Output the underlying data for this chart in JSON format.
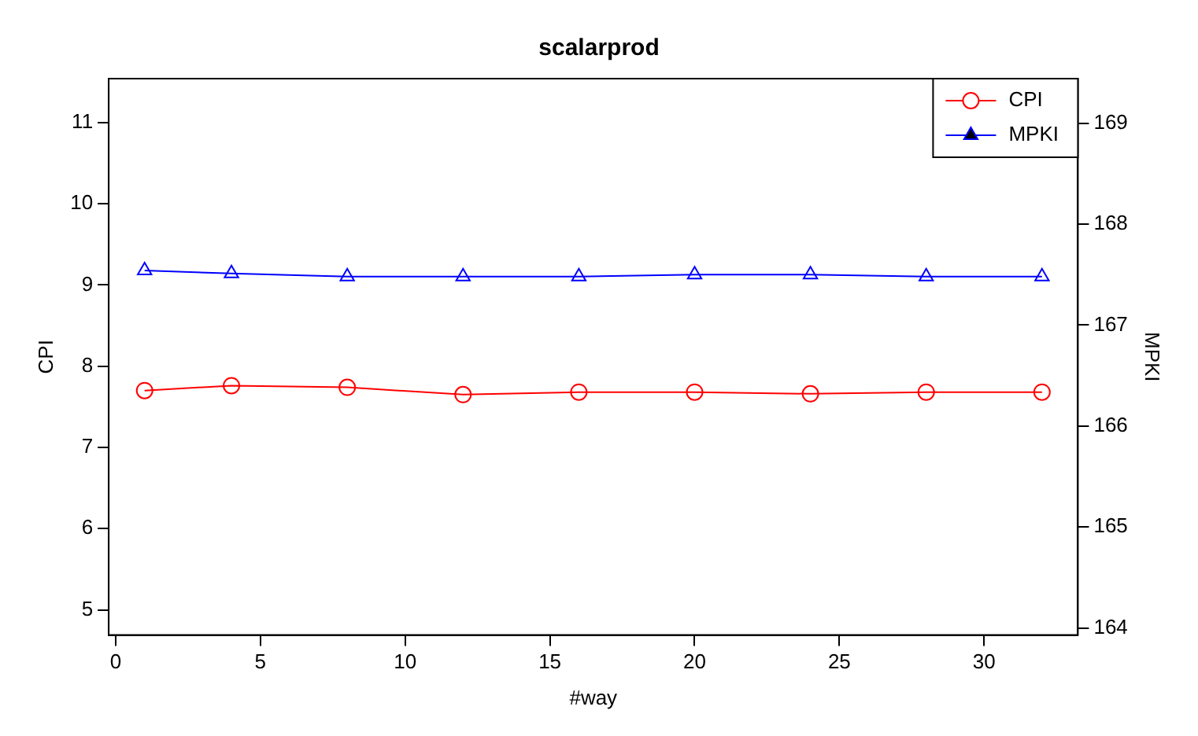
{
  "chart_data": {
    "type": "line",
    "title": "scalarprod",
    "xlabel": "#way",
    "ylabel": "CPI",
    "y2label": "MPKI",
    "x": [
      1,
      4,
      8,
      12,
      16,
      20,
      24,
      28,
      32
    ],
    "series": [
      {
        "name": "CPI",
        "color": "#ff0000",
        "marker": "circle",
        "values": [
          7.7,
          7.76,
          7.74,
          7.65,
          7.68,
          7.68,
          7.66,
          7.68,
          7.68
        ]
      },
      {
        "name": "MPKI",
        "color": "#0000ff",
        "marker": "triangle",
        "axis": "y2",
        "values": [
          167.54,
          167.51,
          167.48,
          167.48,
          167.48,
          167.5,
          167.5,
          167.48,
          167.48
        ]
      }
    ],
    "xlim": [
      -0.24,
      33.24
    ],
    "xticks": [
      0,
      5,
      10,
      15,
      20,
      25,
      30
    ],
    "ylim": [
      4.69,
      11.54
    ],
    "yticks": [
      5,
      6,
      7,
      8,
      9,
      10,
      11
    ],
    "y2lim": [
      163.93,
      169.44
    ],
    "y2ticks": [
      164,
      165,
      166,
      167,
      168,
      169
    ],
    "grid": false,
    "legend": "top right",
    "line_style": "solid"
  }
}
